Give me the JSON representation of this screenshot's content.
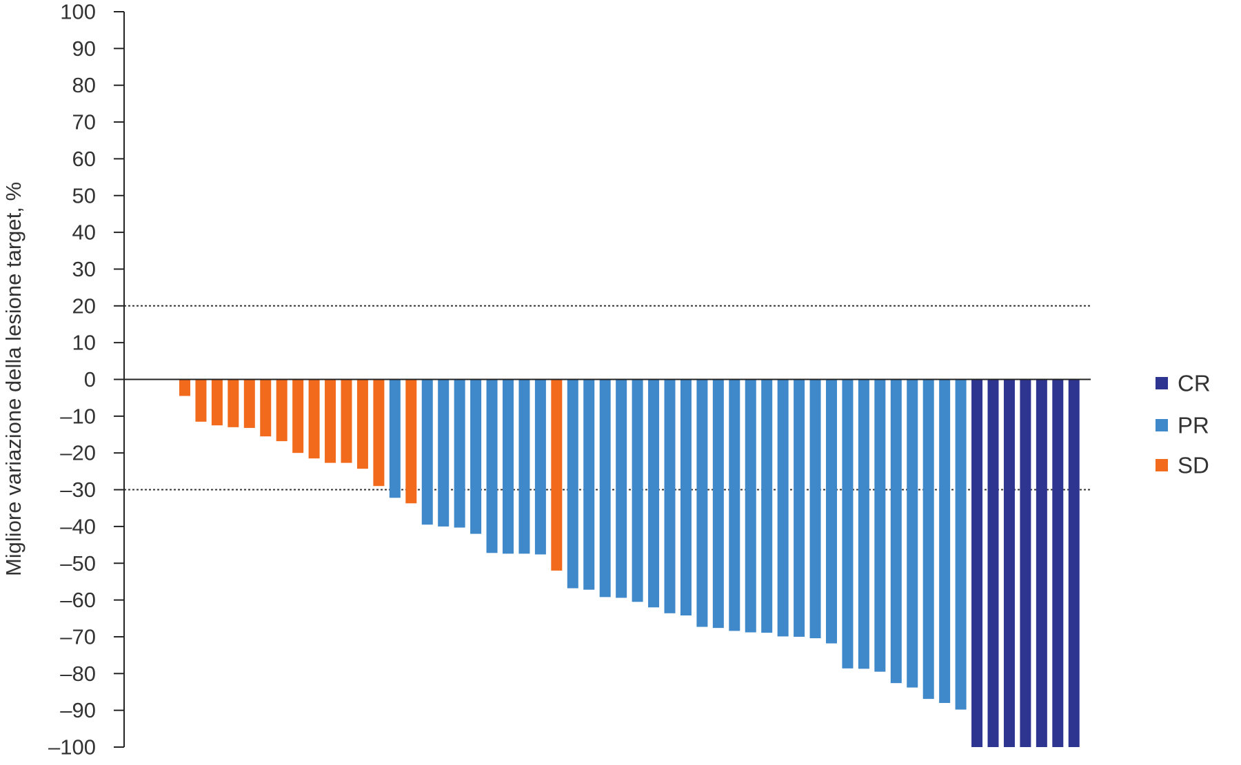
{
  "chart_data": {
    "type": "bar",
    "title": "",
    "xlabel": "",
    "ylabel": "Migliore variazione della lesione target, %",
    "ylim": [
      -100,
      100
    ],
    "yticks": [
      100,
      90,
      80,
      70,
      60,
      50,
      40,
      30,
      20,
      10,
      0,
      -10,
      -20,
      -30,
      -40,
      -50,
      -60,
      -70,
      -80,
      -90,
      -100
    ],
    "ytick_labels": [
      "100",
      "90",
      "80",
      "70",
      "60",
      "50",
      "40",
      "30",
      "20",
      "10",
      "0",
      "–10",
      "–20",
      "–30",
      "–40",
      "–50",
      "–60",
      "–70",
      "–80",
      "–90",
      "–100"
    ],
    "reference_lines": [
      20,
      -30
    ],
    "grid": false,
    "legend_position": "right",
    "colors": {
      "CR": "#2e3591",
      "PR": "#3f88c9",
      "SD": "#f26b1d",
      "text": "#333333",
      "axis": "#222222"
    },
    "legend": [
      {
        "key": "CR",
        "label": "CR"
      },
      {
        "key": "PR",
        "label": "PR"
      },
      {
        "key": "SD",
        "label": "SD"
      }
    ],
    "bars": [
      {
        "value": -4.5,
        "category": "SD"
      },
      {
        "value": -11.5,
        "category": "SD"
      },
      {
        "value": -12.5,
        "category": "SD"
      },
      {
        "value": -13,
        "category": "SD"
      },
      {
        "value": -13.2,
        "category": "SD"
      },
      {
        "value": -15.5,
        "category": "SD"
      },
      {
        "value": -16.8,
        "category": "SD"
      },
      {
        "value": -20,
        "category": "SD"
      },
      {
        "value": -21.5,
        "category": "SD"
      },
      {
        "value": -22.7,
        "category": "SD"
      },
      {
        "value": -22.7,
        "category": "SD"
      },
      {
        "value": -24.3,
        "category": "SD"
      },
      {
        "value": -29,
        "category": "SD"
      },
      {
        "value": -32.2,
        "category": "PR"
      },
      {
        "value": -33.7,
        "category": "SD"
      },
      {
        "value": -39.5,
        "category": "PR"
      },
      {
        "value": -40,
        "category": "PR"
      },
      {
        "value": -40.3,
        "category": "PR"
      },
      {
        "value": -42,
        "category": "PR"
      },
      {
        "value": -47.2,
        "category": "PR"
      },
      {
        "value": -47.4,
        "category": "PR"
      },
      {
        "value": -47.4,
        "category": "PR"
      },
      {
        "value": -47.6,
        "category": "PR"
      },
      {
        "value": -52,
        "category": "SD"
      },
      {
        "value": -56.8,
        "category": "PR"
      },
      {
        "value": -57.2,
        "category": "PR"
      },
      {
        "value": -59.2,
        "category": "PR"
      },
      {
        "value": -59.4,
        "category": "PR"
      },
      {
        "value": -60.5,
        "category": "PR"
      },
      {
        "value": -62,
        "category": "PR"
      },
      {
        "value": -63.6,
        "category": "PR"
      },
      {
        "value": -64.2,
        "category": "PR"
      },
      {
        "value": -67.3,
        "category": "PR"
      },
      {
        "value": -67.6,
        "category": "PR"
      },
      {
        "value": -68.4,
        "category": "PR"
      },
      {
        "value": -68.8,
        "category": "PR"
      },
      {
        "value": -68.9,
        "category": "PR"
      },
      {
        "value": -69.9,
        "category": "PR"
      },
      {
        "value": -70,
        "category": "PR"
      },
      {
        "value": -70.4,
        "category": "PR"
      },
      {
        "value": -71.8,
        "category": "PR"
      },
      {
        "value": -78.6,
        "category": "PR"
      },
      {
        "value": -78.7,
        "category": "PR"
      },
      {
        "value": -79.5,
        "category": "PR"
      },
      {
        "value": -82.6,
        "category": "PR"
      },
      {
        "value": -83.8,
        "category": "PR"
      },
      {
        "value": -86.9,
        "category": "PR"
      },
      {
        "value": -88,
        "category": "PR"
      },
      {
        "value": -89.8,
        "category": "PR"
      },
      {
        "value": -100,
        "category": "CR"
      },
      {
        "value": -100,
        "category": "CR"
      },
      {
        "value": -100,
        "category": "CR"
      },
      {
        "value": -100,
        "category": "CR"
      },
      {
        "value": -100,
        "category": "CR"
      },
      {
        "value": -100,
        "category": "CR"
      },
      {
        "value": -100,
        "category": "CR"
      }
    ]
  }
}
